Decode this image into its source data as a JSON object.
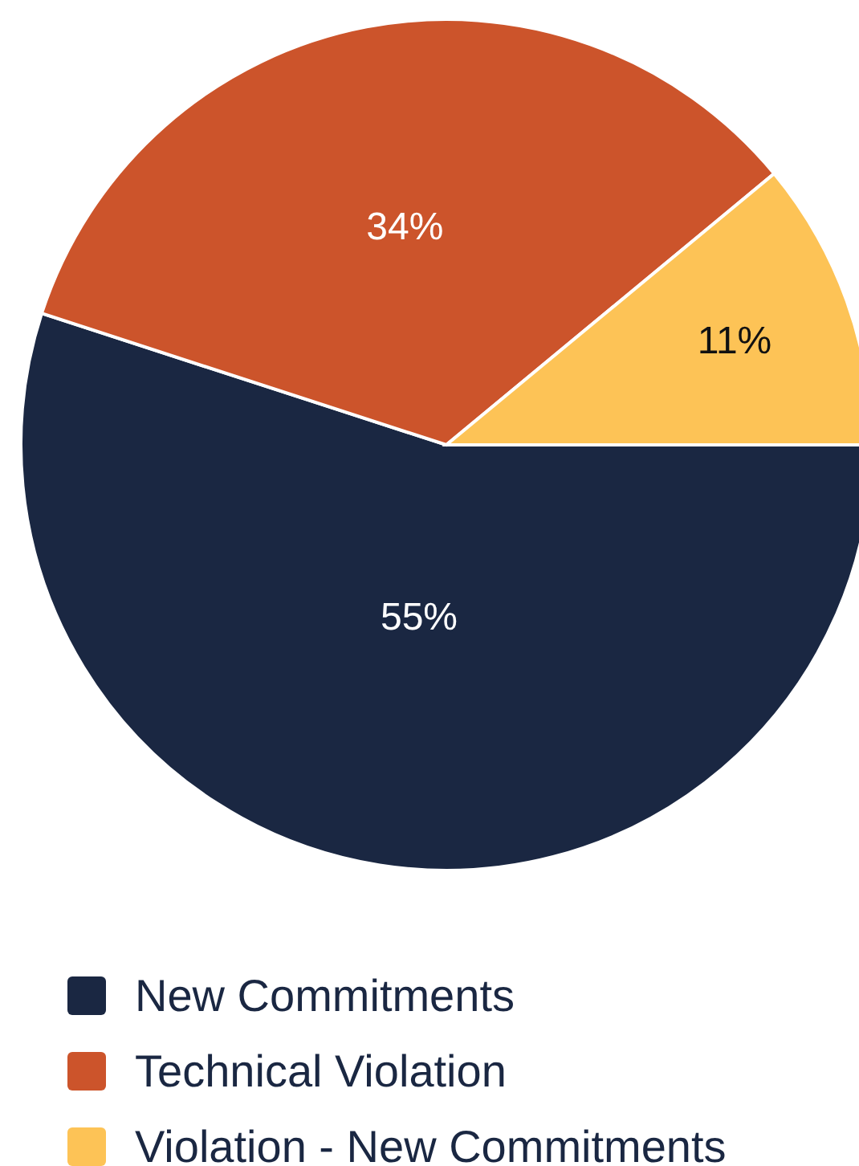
{
  "chart_data": {
    "type": "pie",
    "categories": [
      "New Commitments",
      "Technical Violation",
      "Violation - New Commitments"
    ],
    "values": [
      55,
      34,
      11
    ],
    "colors": [
      "#1a2742",
      "#cc542b",
      "#fdc356"
    ],
    "value_labels": [
      "55%",
      "34%",
      "11%"
    ],
    "legend": "bottom"
  }
}
